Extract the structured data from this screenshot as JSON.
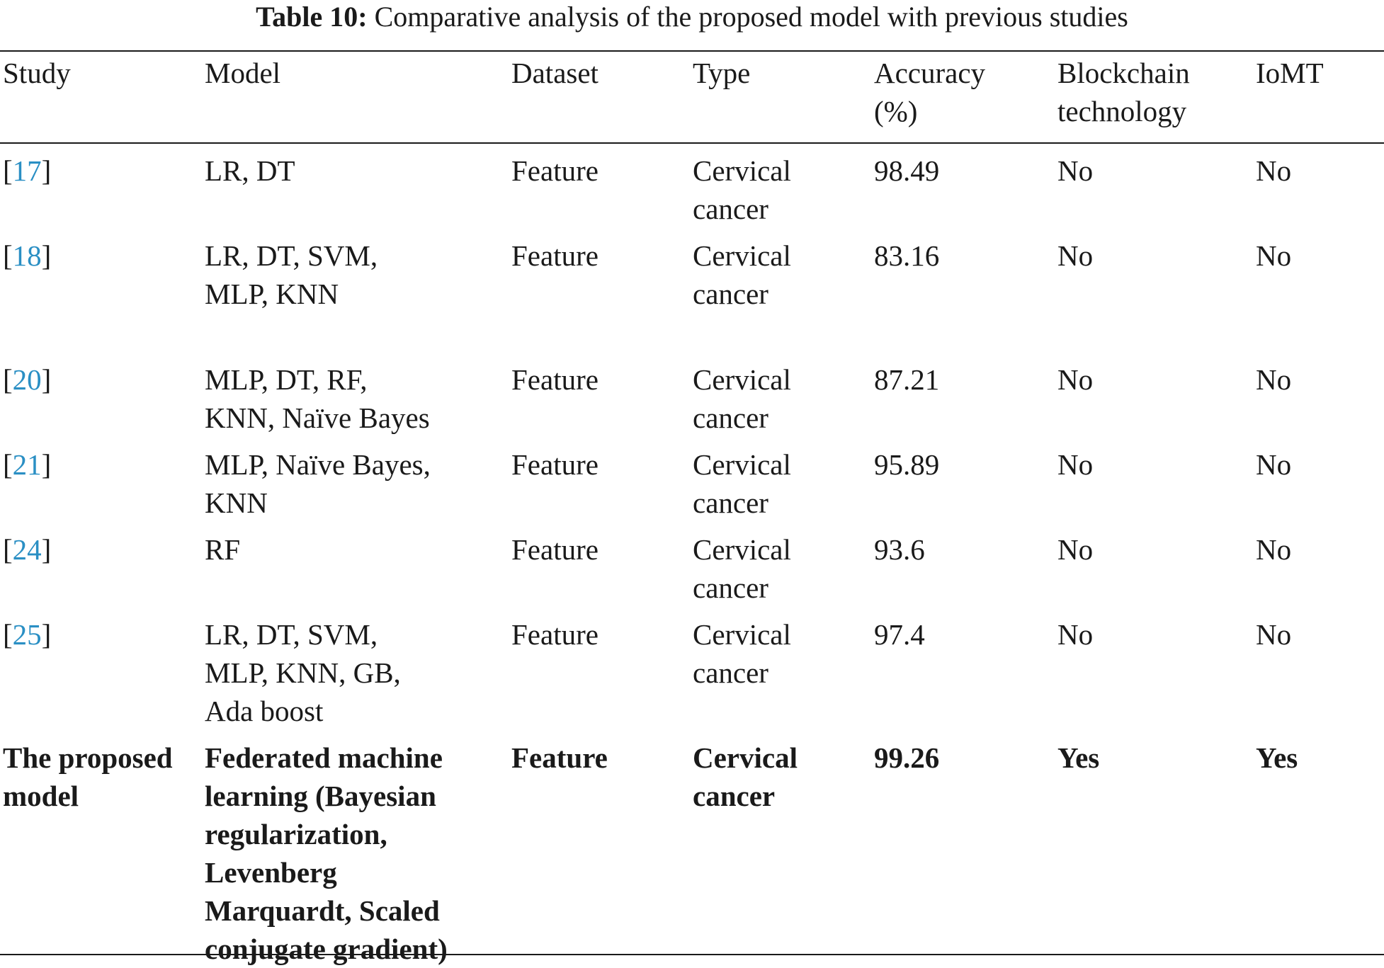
{
  "caption": {
    "label": "Table 10:",
    "text": "Comparative analysis of the proposed model with previous studies"
  },
  "table": {
    "headers": {
      "study": "Study",
      "model": "Model",
      "dataset": "Dataset",
      "type": "Type",
      "accuracy_line1": "Accuracy",
      "accuracy_line2": "(%)",
      "blockchain_line1": "Blockchain",
      "blockchain_line2": "technology",
      "iomt": "IoMT"
    },
    "rows": [
      {
        "ref": "17",
        "model_lines": [
          "LR, DT"
        ],
        "dataset": "Feature",
        "type_lines": [
          "Cervical",
          "cancer"
        ],
        "accuracy": "98.49",
        "blockchain": "No",
        "iomt": "No"
      },
      {
        "ref": "18",
        "model_lines": [
          "LR, DT, SVM,",
          "MLP, KNN"
        ],
        "dataset": "Feature",
        "type_lines": [
          "Cervical",
          "cancer"
        ],
        "accuracy": "83.16",
        "blockchain": "No",
        "iomt": "No"
      },
      {
        "ref": "20",
        "model_lines": [
          "MLP, DT, RF,",
          "KNN, Naïve Bayes"
        ],
        "dataset": "Feature",
        "type_lines": [
          "Cervical",
          "cancer"
        ],
        "accuracy": "87.21",
        "blockchain": "No",
        "iomt": "No"
      },
      {
        "ref": "21",
        "model_lines": [
          "MLP, Naïve Bayes,",
          "KNN"
        ],
        "dataset": "Feature",
        "type_lines": [
          "Cervical",
          "cancer"
        ],
        "accuracy": "95.89",
        "blockchain": "No",
        "iomt": "No"
      },
      {
        "ref": "24",
        "model_lines": [
          "RF"
        ],
        "dataset": "Feature",
        "type_lines": [
          "Cervical",
          "cancer"
        ],
        "accuracy": "93.6",
        "blockchain": "No",
        "iomt": "No"
      },
      {
        "ref": "25",
        "model_lines": [
          "LR, DT, SVM,",
          "MLP, KNN, GB,",
          "Ada boost"
        ],
        "dataset": "Feature",
        "type_lines": [
          "Cervical",
          "cancer"
        ],
        "accuracy": "97.4",
        "blockchain": "No",
        "iomt": "No"
      }
    ],
    "proposed": {
      "study_lines": [
        "The proposed",
        "model"
      ],
      "model_lines": [
        "Federated machine",
        "learning (Bayesian",
        "regularization,",
        "Levenberg",
        "Marquardt, Scaled",
        "conjugate gradient)"
      ],
      "dataset": "Feature",
      "type_lines": [
        "Cervical",
        "cancer"
      ],
      "accuracy": "99.26",
      "blockchain": "Yes",
      "iomt": "Yes"
    }
  },
  "colors": {
    "citation_link": "#2a8fc4",
    "text": "#1a1a1a"
  }
}
